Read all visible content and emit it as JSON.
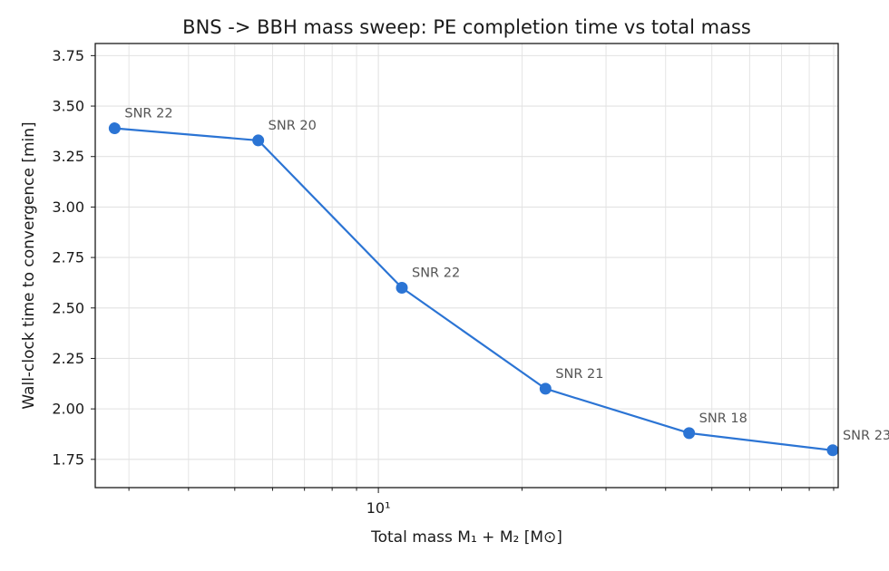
{
  "colors": {
    "series": "#2b74d4",
    "grid": "#e2e2e2",
    "axis": "#1a1a1a",
    "annotation": "#555555"
  },
  "chart_data": {
    "type": "line",
    "title": "BNS -> BBH mass sweep: PE completion time vs total mass",
    "xlabel": "Total mass M₁ + M₂ [M⊙]",
    "ylabel": "Wall-clock time to convergence [min]",
    "xscale": "log",
    "xlim": [
      2.55,
      92
    ],
    "ylim": [
      1.61,
      3.81
    ],
    "xticks": [
      {
        "value": 10,
        "label": "10¹"
      }
    ],
    "yticks": [
      {
        "value": 1.75,
        "label": "1.75"
      },
      {
        "value": 2.0,
        "label": "2.00"
      },
      {
        "value": 2.25,
        "label": "2.25"
      },
      {
        "value": 2.5,
        "label": "2.50"
      },
      {
        "value": 2.75,
        "label": "2.75"
      },
      {
        "value": 3.0,
        "label": "3.00"
      },
      {
        "value": 3.25,
        "label": "3.25"
      },
      {
        "value": 3.5,
        "label": "3.50"
      },
      {
        "value": 3.75,
        "label": "3.75"
      }
    ],
    "grid": true,
    "series": [
      {
        "x": [
          2.8,
          5.6,
          11.2,
          22.4,
          44.8,
          89.6
        ],
        "y": [
          3.39,
          3.33,
          2.6,
          2.1,
          1.88,
          1.795
        ],
        "annotations": [
          "SNR 22",
          "SNR 20",
          "SNR 22",
          "SNR 21",
          "SNR 18",
          "SNR 23"
        ]
      }
    ]
  }
}
